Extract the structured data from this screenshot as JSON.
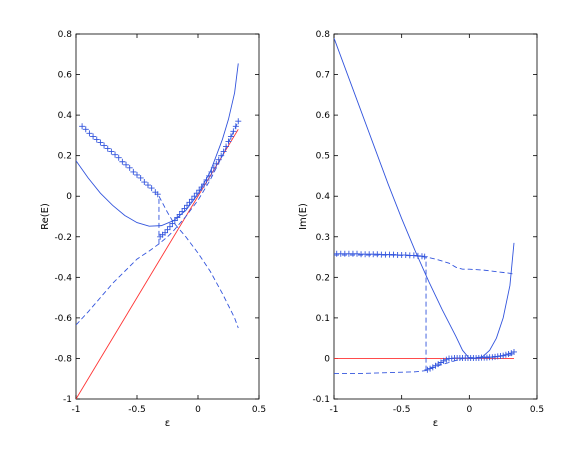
{
  "chart_data": [
    {
      "type": "line",
      "xlabel": "ε",
      "ylabel": "Re(E)",
      "xlim": [
        -1,
        0.5
      ],
      "ylim": [
        -1,
        0.8
      ],
      "xticks": [
        -1,
        -0.5,
        0,
        0.5
      ],
      "xtick_labels": [
        "-1",
        "-0.5",
        "0",
        "0.5"
      ],
      "yticks": [
        -1,
        -0.8,
        -0.6,
        -0.4,
        -0.2,
        0,
        0.2,
        0.4,
        0.6,
        0.8
      ],
      "ytick_labels": [
        "-1",
        "-0.8",
        "-0.6",
        "-0.4",
        "-0.2",
        "0",
        "0.2",
        "0.4",
        "0.6",
        "0.8"
      ],
      "grid": false,
      "series": [
        {
          "style": "solid",
          "color": "#ff3333",
          "x": [
            -1,
            0.33
          ],
          "y": [
            -1,
            0.33
          ]
        },
        {
          "style": "solid",
          "color": "#3355dd",
          "x": [
            -1,
            -0.9,
            -0.8,
            -0.7,
            -0.6,
            -0.5,
            -0.4,
            -0.3,
            -0.2,
            -0.1,
            0,
            0.1,
            0.2,
            0.25,
            0.3,
            0.33
          ],
          "y": [
            0.175,
            0.09,
            0.015,
            -0.045,
            -0.095,
            -0.13,
            -0.148,
            -0.145,
            -0.12,
            -0.07,
            0.01,
            0.12,
            0.28,
            0.38,
            0.51,
            0.655
          ]
        },
        {
          "style": "dashed",
          "color": "#3355dd",
          "x": [
            -1,
            -0.9,
            -0.8,
            -0.7,
            -0.6,
            -0.5,
            -0.4,
            -0.32,
            -0.25,
            -0.2,
            -0.1,
            0,
            0.1,
            0.2,
            0.3,
            0.33
          ],
          "y": [
            -0.635,
            -0.57,
            -0.5,
            -0.43,
            -0.37,
            -0.31,
            -0.27,
            -0.235,
            -0.2,
            -0.17,
            -0.1,
            -0.02,
            0.08,
            0.2,
            0.33,
            0.37
          ]
        },
        {
          "style": "dashed",
          "color": "#3355dd",
          "x": [
            -0.32,
            -0.25,
            -0.2,
            -0.1,
            0,
            0.1,
            0.2,
            0.3,
            0.33
          ],
          "y": [
            0.0,
            -0.08,
            -0.13,
            -0.2,
            -0.28,
            -0.37,
            -0.48,
            -0.6,
            -0.65
          ]
        },
        {
          "style": "dashed",
          "color": "#3355dd",
          "x": [
            -0.32,
            -0.32
          ],
          "y": [
            -0.235,
            0.0
          ]
        },
        {
          "style": "markers",
          "marker": "+",
          "color": "#3355dd",
          "x": [
            -0.95,
            -0.92,
            -0.89,
            -0.86,
            -0.83,
            -0.8,
            -0.77,
            -0.74,
            -0.71,
            -0.68,
            -0.65,
            -0.62,
            -0.59,
            -0.56,
            -0.53,
            -0.5,
            -0.47,
            -0.44,
            -0.41,
            -0.38,
            -0.35,
            -0.33,
            -0.31,
            -0.29,
            -0.27,
            -0.25,
            -0.23,
            -0.21,
            -0.19,
            -0.17,
            -0.15,
            -0.13,
            -0.11,
            -0.09,
            -0.07,
            -0.05,
            -0.03,
            -0.01,
            0.01,
            0.03,
            0.05,
            0.07,
            0.09,
            0.11,
            0.13,
            0.15,
            0.17,
            0.19,
            0.21,
            0.23,
            0.25,
            0.27,
            0.29,
            0.31,
            0.33
          ],
          "y": [
            0.345,
            0.33,
            0.31,
            0.295,
            0.28,
            0.265,
            0.25,
            0.235,
            0.22,
            0.205,
            0.19,
            0.17,
            0.155,
            0.14,
            0.12,
            0.105,
            0.09,
            0.07,
            0.055,
            0.04,
            0.02,
            0.01,
            -0.2,
            -0.19,
            -0.18,
            -0.165,
            -0.15,
            -0.135,
            -0.12,
            -0.105,
            -0.09,
            -0.075,
            -0.06,
            -0.045,
            -0.03,
            -0.015,
            0.0,
            0.015,
            0.03,
            0.045,
            0.06,
            0.08,
            0.1,
            0.12,
            0.14,
            0.16,
            0.18,
            0.2,
            0.22,
            0.245,
            0.27,
            0.295,
            0.32,
            0.345,
            0.37
          ]
        }
      ]
    },
    {
      "type": "line",
      "xlabel": "ε",
      "ylabel": "Im(E)",
      "xlim": [
        -1,
        0.5
      ],
      "ylim": [
        -0.1,
        0.8
      ],
      "xticks": [
        -1,
        -0.5,
        0,
        0.5
      ],
      "xtick_labels": [
        "-1",
        "-0.5",
        "0",
        "0.5"
      ],
      "yticks": [
        -0.1,
        0,
        0.1,
        0.2,
        0.3,
        0.4,
        0.5,
        0.6,
        0.7,
        0.8
      ],
      "ytick_labels": [
        "-0.1",
        "0",
        "0.1",
        "0.2",
        "0.3",
        "0.4",
        "0.5",
        "0.6",
        "0.7",
        "0.8"
      ],
      "grid": false,
      "series": [
        {
          "style": "solid",
          "color": "#ff3333",
          "x": [
            -1,
            0.33
          ],
          "y": [
            0,
            0
          ]
        },
        {
          "style": "solid",
          "color": "#3355dd",
          "x": [
            -1,
            -0.9,
            -0.8,
            -0.7,
            -0.6,
            -0.5,
            -0.4,
            -0.3,
            -0.2,
            -0.1,
            -0.05,
            0,
            0.05,
            0.1,
            0.15,
            0.2,
            0.25,
            0.3,
            0.33
          ],
          "y": [
            0.79,
            0.7,
            0.61,
            0.52,
            0.43,
            0.345,
            0.265,
            0.19,
            0.12,
            0.055,
            0.02,
            0.0,
            0.0,
            0.005,
            0.02,
            0.05,
            0.1,
            0.18,
            0.285
          ]
        },
        {
          "style": "dashed",
          "color": "#3355dd",
          "x": [
            -1,
            -0.8,
            -0.6,
            -0.4,
            -0.32,
            -0.25,
            -0.2,
            -0.15,
            -0.1,
            -0.05,
            0,
            0.1,
            0.2,
            0.3,
            0.33
          ],
          "y": [
            0.255,
            0.255,
            0.255,
            0.253,
            0.25,
            0.245,
            0.24,
            0.235,
            0.225,
            0.22,
            0.22,
            0.218,
            0.214,
            0.21,
            0.208
          ]
        },
        {
          "style": "dashed",
          "color": "#3355dd",
          "x": [
            -1,
            -0.8,
            -0.6,
            -0.4,
            -0.32,
            -0.25,
            -0.2,
            -0.1,
            -0.05,
            0,
            0.1,
            0.2,
            0.3,
            0.33
          ],
          "y": [
            -0.037,
            -0.037,
            -0.035,
            -0.033,
            -0.03,
            -0.02,
            -0.015,
            -0.005,
            0.0,
            0.002,
            0.003,
            0.005,
            0.008,
            0.01
          ]
        },
        {
          "style": "dashed",
          "color": "#3355dd",
          "x": [
            -0.32,
            -0.32
          ],
          "y": [
            -0.03,
            0.25
          ]
        },
        {
          "style": "markers",
          "marker": "+",
          "color": "#3355dd",
          "x": [
            -0.98,
            -0.95,
            -0.92,
            -0.89,
            -0.86,
            -0.83,
            -0.8,
            -0.77,
            -0.74,
            -0.71,
            -0.68,
            -0.65,
            -0.62,
            -0.59,
            -0.56,
            -0.53,
            -0.5,
            -0.47,
            -0.44,
            -0.41,
            -0.38,
            -0.35,
            -0.33,
            -0.31,
            -0.29,
            -0.27,
            -0.25,
            -0.23,
            -0.21,
            -0.19,
            -0.17,
            -0.15,
            -0.13,
            -0.11,
            -0.09,
            -0.07,
            -0.05,
            -0.03,
            -0.01,
            0.01,
            0.03,
            0.05,
            0.07,
            0.09,
            0.11,
            0.13,
            0.15,
            0.17,
            0.19,
            0.21,
            0.23,
            0.25,
            0.27,
            0.29,
            0.31,
            0.33
          ],
          "y": [
            0.258,
            0.258,
            0.258,
            0.258,
            0.258,
            0.258,
            0.257,
            0.257,
            0.257,
            0.257,
            0.257,
            0.256,
            0.256,
            0.256,
            0.256,
            0.255,
            0.255,
            0.255,
            0.254,
            0.254,
            0.253,
            0.252,
            0.251,
            -0.028,
            -0.025,
            -0.022,
            -0.018,
            -0.014,
            -0.01,
            -0.006,
            -0.003,
            0.0,
            0.0,
            0.001,
            0.001,
            0.001,
            0.001,
            0.001,
            0.001,
            0.001,
            0.001,
            0.001,
            0.001,
            0.002,
            0.002,
            0.002,
            0.003,
            0.003,
            0.004,
            0.005,
            0.006,
            0.007,
            0.009,
            0.011,
            0.013,
            0.016
          ]
        }
      ]
    }
  ]
}
